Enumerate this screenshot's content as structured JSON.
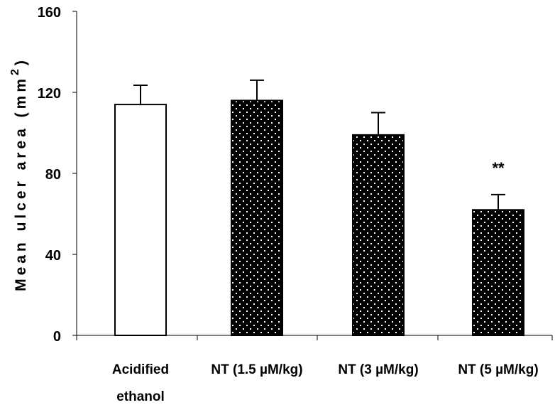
{
  "chart_data": {
    "type": "bar",
    "title": "",
    "xlabel": "",
    "ylabel": "Mean ulcer area (mm",
    "ylabel_superscript": "2",
    "ylabel_close": ")",
    "ylim": [
      0,
      160
    ],
    "yticks": [
      0,
      40,
      80,
      120,
      160
    ],
    "categories": [
      [
        "Acidified",
        "ethanol"
      ],
      [
        "NT (1.5 µM/kg)"
      ],
      [
        "NT (3 µM/kg)"
      ],
      [
        "NT (5 µM/kg)"
      ]
    ],
    "values": [
      114,
      116,
      99,
      62
    ],
    "errors": [
      9.5,
      10,
      11,
      7.5
    ],
    "fill": [
      "white",
      "dotted-black",
      "dotted-black",
      "dotted-black"
    ],
    "annotations": [
      "",
      "",
      "",
      "**"
    ],
    "grid": false,
    "legend": "none"
  }
}
